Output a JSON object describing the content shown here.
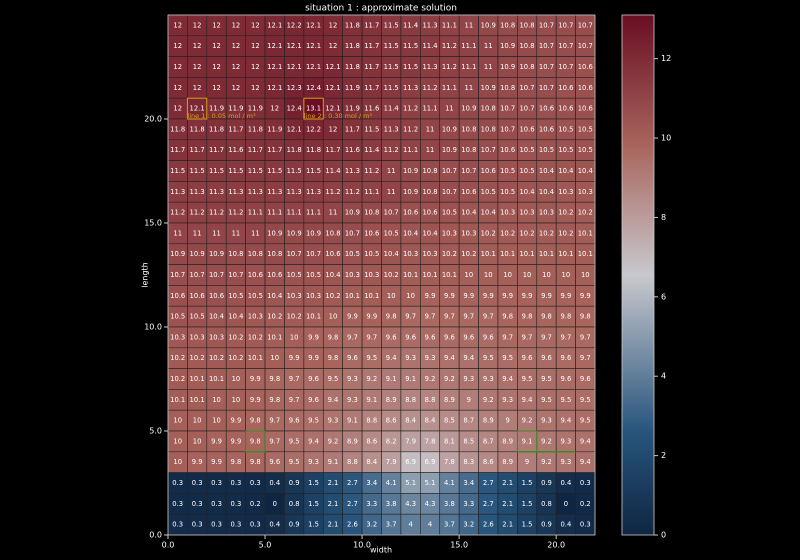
{
  "chart_data": {
    "type": "heatmap",
    "title": "situation 1 : approximate solution",
    "x_label": "width",
    "y_label": "length",
    "xlim": [
      0,
      22
    ],
    "ylim": [
      0,
      25
    ],
    "xticks": [
      {
        "value": 0,
        "label": "0.0"
      },
      {
        "value": 5,
        "label": "5.0"
      },
      {
        "value": 10,
        "label": "10.0"
      },
      {
        "value": 15,
        "label": "15.0"
      },
      {
        "value": 20,
        "label": "20.0"
      }
    ],
    "yticks": [
      {
        "value": 0,
        "label": "0.0"
      },
      {
        "value": 5,
        "label": "5.0"
      },
      {
        "value": 10,
        "label": "10.0"
      },
      {
        "value": 15,
        "label": "15.0"
      },
      {
        "value": 20,
        "label": "20.0"
      }
    ],
    "colormap": "RdBu_r",
    "clim": [
      0,
      13.1
    ],
    "cticks": [
      0,
      2,
      4,
      6,
      8,
      10,
      12
    ],
    "annotations": [
      "line 1 : 0.05 mol / m³",
      "line 2 : 0.30 mol / m³"
    ],
    "z": [
      [
        12.0,
        12.0,
        12.0,
        12.0,
        12.0,
        12.1,
        12.2,
        12.1,
        12.0,
        11.8,
        11.7,
        11.5,
        11.4,
        11.3,
        11.1,
        11.0,
        10.9,
        10.8,
        10.8,
        10.7,
        10.7,
        10.7
      ],
      [
        12.0,
        12.0,
        12.0,
        12.0,
        12.0,
        12.1,
        12.1,
        12.1,
        12.0,
        11.8,
        11.7,
        11.5,
        11.5,
        11.4,
        11.2,
        11.1,
        11.0,
        10.9,
        10.8,
        10.7,
        10.7,
        10.7
      ],
      [
        12.0,
        12.0,
        12.0,
        12.0,
        12.0,
        12.1,
        12.1,
        12.1,
        12.1,
        11.8,
        11.7,
        11.5,
        11.5,
        11.3,
        11.2,
        11.1,
        11.0,
        10.9,
        10.8,
        10.7,
        10.7,
        10.6
      ],
      [
        12.0,
        12.0,
        12.0,
        12.0,
        12.0,
        12.1,
        12.3,
        12.4,
        12.1,
        11.9,
        11.7,
        11.5,
        11.3,
        11.2,
        11.1,
        11.0,
        10.9,
        10.8,
        10.7,
        10.7,
        10.6,
        10.6
      ],
      [
        12.0,
        12.1,
        11.9,
        11.9,
        11.9,
        12.0,
        12.4,
        13.1,
        12.1,
        11.9,
        11.6,
        11.4,
        11.2,
        11.1,
        11.0,
        10.9,
        10.8,
        10.7,
        10.7,
        10.6,
        10.6,
        10.6
      ],
      [
        11.8,
        11.8,
        11.8,
        11.7,
        11.8,
        11.9,
        12.1,
        12.2,
        12.0,
        11.7,
        11.5,
        11.3,
        11.2,
        11.0,
        10.9,
        10.8,
        10.8,
        10.7,
        10.6,
        10.6,
        10.5,
        10.5
      ],
      [
        11.7,
        11.7,
        11.7,
        11.6,
        11.7,
        11.7,
        11.8,
        11.8,
        11.7,
        11.6,
        11.4,
        11.2,
        11.1,
        11.0,
        10.9,
        10.8,
        10.7,
        10.6,
        10.5,
        10.5,
        10.5,
        10.5
      ],
      [
        11.5,
        11.5,
        11.5,
        11.5,
        11.5,
        11.5,
        11.5,
        11.5,
        11.4,
        11.3,
        11.2,
        11.0,
        10.9,
        10.8,
        10.7,
        10.7,
        10.6,
        10.5,
        10.5,
        10.4,
        10.4,
        10.4
      ],
      [
        11.3,
        11.3,
        11.3,
        11.3,
        11.3,
        11.3,
        11.3,
        11.3,
        11.2,
        11.2,
        11.1,
        11.0,
        10.9,
        10.8,
        10.7,
        10.6,
        10.5,
        10.5,
        10.4,
        10.4,
        10.3,
        10.3
      ],
      [
        11.2,
        11.2,
        11.2,
        11.2,
        11.1,
        11.1,
        11.1,
        11.1,
        11.0,
        10.9,
        10.8,
        10.7,
        10.6,
        10.6,
        10.5,
        10.4,
        10.4,
        10.3,
        10.3,
        10.3,
        10.2,
        10.2
      ],
      [
        11.0,
        11.0,
        11.0,
        11.0,
        11.0,
        10.9,
        10.9,
        10.9,
        10.8,
        10.7,
        10.6,
        10.5,
        10.4,
        10.4,
        10.3,
        10.3,
        10.2,
        10.2,
        10.2,
        10.2,
        10.2,
        10.1
      ],
      [
        10.9,
        10.9,
        10.9,
        10.8,
        10.8,
        10.8,
        10.7,
        10.7,
        10.6,
        10.5,
        10.5,
        10.4,
        10.3,
        10.3,
        10.2,
        10.2,
        10.1,
        10.1,
        10.1,
        10.1,
        10.1,
        10.1
      ],
      [
        10.7,
        10.7,
        10.7,
        10.7,
        10.6,
        10.6,
        10.5,
        10.5,
        10.4,
        10.3,
        10.3,
        10.2,
        10.1,
        10.1,
        10.1,
        10.0,
        10.0,
        10.0,
        10.0,
        10.0,
        10.0,
        10.0
      ],
      [
        10.6,
        10.6,
        10.6,
        10.5,
        10.5,
        10.4,
        10.3,
        10.3,
        10.2,
        10.1,
        10.1,
        10.0,
        10.0,
        9.9,
        9.9,
        9.9,
        9.9,
        9.9,
        9.9,
        9.9,
        9.9,
        9.9
      ],
      [
        10.5,
        10.5,
        10.4,
        10.4,
        10.3,
        10.2,
        10.2,
        10.1,
        10.0,
        9.9,
        9.9,
        9.8,
        9.7,
        9.7,
        9.7,
        9.7,
        9.7,
        9.8,
        9.8,
        9.8,
        9.8,
        9.8
      ],
      [
        10.3,
        10.3,
        10.3,
        10.2,
        10.2,
        10.1,
        10.0,
        9.9,
        9.8,
        9.7,
        9.7,
        9.6,
        9.6,
        9.6,
        9.6,
        9.6,
        9.6,
        9.7,
        9.7,
        9.7,
        9.7,
        9.7
      ],
      [
        10.2,
        10.2,
        10.2,
        10.2,
        10.1,
        10.0,
        9.9,
        9.9,
        9.8,
        9.6,
        9.5,
        9.4,
        9.3,
        9.3,
        9.4,
        9.4,
        9.5,
        9.5,
        9.6,
        9.6,
        9.6,
        9.7
      ],
      [
        10.2,
        10.1,
        10.1,
        10.0,
        9.9,
        9.8,
        9.7,
        9.6,
        9.5,
        9.3,
        9.2,
        9.1,
        9.1,
        9.2,
        9.2,
        9.3,
        9.3,
        9.4,
        9.5,
        9.5,
        9.6,
        9.6
      ],
      [
        10.1,
        10.1,
        10.0,
        10.0,
        9.9,
        9.8,
        9.7,
        9.6,
        9.4,
        9.3,
        9.1,
        8.9,
        8.8,
        8.8,
        8.9,
        9.0,
        9.2,
        9.3,
        9.4,
        9.5,
        9.5,
        9.5
      ],
      [
        10.0,
        10.0,
        10.0,
        9.9,
        9.8,
        9.7,
        9.6,
        9.5,
        9.3,
        9.1,
        8.8,
        8.6,
        8.4,
        8.4,
        8.5,
        8.7,
        8.9,
        9.0,
        9.2,
        9.3,
        9.4,
        9.5
      ],
      [
        10.0,
        10.0,
        9.9,
        9.9,
        9.8,
        9.7,
        9.5,
        9.4,
        9.2,
        8.9,
        8.6,
        8.2,
        7.9,
        7.8,
        8.1,
        8.5,
        8.7,
        8.9,
        9.1,
        9.2,
        9.3,
        9.4
      ],
      [
        10.0,
        9.9,
        9.9,
        9.8,
        9.8,
        9.6,
        9.5,
        9.3,
        9.1,
        8.8,
        8.4,
        7.9,
        6.9,
        6.9,
        7.8,
        8.3,
        8.6,
        8.9,
        9.0,
        9.2,
        9.3,
        9.4
      ],
      [
        0.3,
        0.3,
        0.3,
        0.3,
        0.3,
        0.4,
        0.9,
        1.5,
        2.1,
        2.7,
        3.4,
        4.1,
        5.1,
        5.1,
        4.1,
        3.4,
        2.7,
        2.1,
        1.5,
        0.9,
        0.4,
        0.3
      ],
      [
        0.3,
        0.3,
        0.3,
        0.3,
        0.2,
        0.0,
        0.8,
        1.5,
        2.1,
        2.7,
        3.3,
        3.8,
        4.3,
        4.3,
        3.8,
        3.3,
        2.7,
        2.1,
        1.5,
        0.8,
        0.0,
        0.2
      ],
      [
        0.3,
        0.3,
        0.3,
        0.3,
        0.3,
        0.4,
        0.9,
        1.5,
        2.1,
        2.6,
        3.2,
        3.7,
        4.0,
        4.0,
        3.7,
        3.2,
        2.6,
        2.1,
        1.5,
        0.9,
        0.4,
        0.3
      ]
    ]
  }
}
